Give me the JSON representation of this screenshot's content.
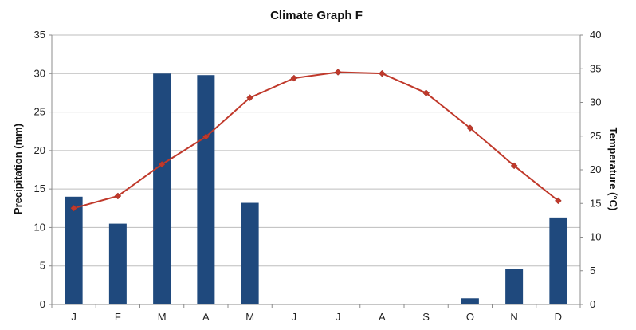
{
  "chart_data": {
    "type": "bar+line",
    "title": "Climate Graph F",
    "categories": [
      "J",
      "F",
      "M",
      "A",
      "M",
      "J",
      "J",
      "A",
      "S",
      "O",
      "N",
      "D"
    ],
    "series": [
      {
        "kind": "bar",
        "axis": "left",
        "values": [
          14,
          10.5,
          30,
          29.8,
          13.2,
          0,
          0,
          0,
          0,
          0.8,
          4.6,
          11.3
        ],
        "color": "#1F497D"
      },
      {
        "kind": "line",
        "axis": "right",
        "values": [
          14.3,
          16.1,
          20.8,
          24.9,
          30.7,
          33.6,
          34.5,
          34.3,
          31.4,
          26.2,
          20.6,
          15.4
        ],
        "color": "#C0392B"
      }
    ],
    "ylabel_left": "Precipitation (mm)",
    "ylabel_right": "Temperature (°C)",
    "ylim_left": [
      0,
      35
    ],
    "ylim_right": [
      0,
      40
    ],
    "yticks_left": [
      "0",
      "5",
      "10",
      "15",
      "20",
      "25",
      "30",
      "35"
    ],
    "yticks_right": [
      "0",
      "5",
      "10",
      "15",
      "20",
      "25",
      "30",
      "35",
      "40"
    ],
    "grid": true,
    "legend": "none"
  }
}
